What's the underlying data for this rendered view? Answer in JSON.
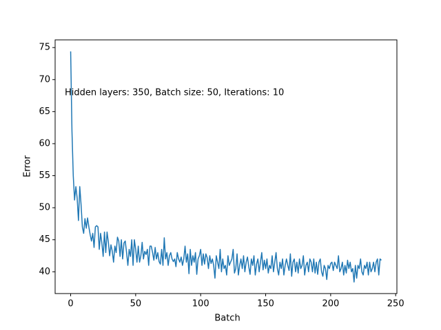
{
  "chart_data": {
    "type": "line",
    "x_label": "Batch",
    "y_label": "Error",
    "annotation": "Hidden layers: 350, Batch size: 50, Iterations: 10",
    "xlim": [
      -11.95,
      250.95
    ],
    "xticks": [
      0,
      50,
      100,
      150,
      200,
      250
    ],
    "ylim": [
      36.6,
      76.2
    ],
    "yticks": [
      40,
      45,
      50,
      55,
      60,
      65,
      70,
      75
    ],
    "series": [
      {
        "color": "#1f77b4",
        "x": [
          0,
          1,
          2,
          3,
          4,
          5,
          6,
          7,
          8,
          9,
          10,
          11,
          12,
          13,
          14,
          15,
          16,
          17,
          18,
          19,
          20,
          21,
          22,
          23,
          24,
          25,
          26,
          27,
          28,
          29,
          30,
          31,
          32,
          33,
          34,
          35,
          36,
          37,
          38,
          39,
          40,
          41,
          42,
          43,
          44,
          45,
          46,
          47,
          48,
          49,
          50,
          51,
          52,
          53,
          54,
          55,
          56,
          57,
          58,
          59,
          60,
          61,
          62,
          63,
          64,
          65,
          66,
          67,
          68,
          69,
          70,
          71,
          72,
          73,
          74,
          75,
          76,
          77,
          78,
          79,
          80,
          81,
          82,
          83,
          84,
          85,
          86,
          87,
          88,
          89,
          90,
          91,
          92,
          93,
          94,
          95,
          96,
          97,
          98,
          99,
          100,
          101,
          102,
          103,
          104,
          105,
          106,
          107,
          108,
          109,
          110,
          111,
          112,
          113,
          114,
          115,
          116,
          117,
          118,
          119,
          120,
          121,
          122,
          123,
          124,
          125,
          126,
          127,
          128,
          129,
          130,
          131,
          132,
          133,
          134,
          135,
          136,
          137,
          138,
          139,
          140,
          141,
          142,
          143,
          144,
          145,
          146,
          147,
          148,
          149,
          150,
          151,
          152,
          153,
          154,
          155,
          156,
          157,
          158,
          159,
          160,
          161,
          162,
          163,
          164,
          165,
          166,
          167,
          168,
          169,
          170,
          171,
          172,
          173,
          174,
          175,
          176,
          177,
          178,
          179,
          180,
          181,
          182,
          183,
          184,
          185,
          186,
          187,
          188,
          189,
          190,
          191,
          192,
          193,
          194,
          195,
          196,
          197,
          198,
          199,
          200,
          201,
          202,
          203,
          204,
          205,
          206,
          207,
          208,
          209,
          210,
          211,
          212,
          213,
          214,
          215,
          216,
          217,
          218,
          219,
          220,
          221,
          222,
          223,
          224,
          225,
          226,
          227,
          228,
          229,
          230,
          231,
          232,
          233,
          234,
          235,
          236,
          237,
          238,
          239
        ],
        "values": [
          74.4,
          62,
          55,
          51.2,
          53.3,
          51.5,
          48,
          53.3,
          50.5,
          47,
          46,
          48.3,
          46.8,
          48.4,
          47,
          45.8,
          44.8,
          46,
          43.8,
          47,
          47.2,
          47,
          43.5,
          46,
          44.5,
          42.4,
          46.2,
          43,
          46.2,
          44.6,
          42.5,
          44.2,
          43.2,
          41.5,
          44,
          43,
          45.4,
          44.8,
          42.4,
          45,
          42,
          44.5,
          44.8,
          43,
          41,
          43.5,
          42.4,
          45,
          41,
          45,
          43.5,
          41.5,
          44,
          41.5,
          42.5,
          44.6,
          42,
          43.2,
          42.7,
          43.5,
          41,
          44,
          44,
          43,
          41.8,
          43.8,
          42,
          43,
          41.6,
          41.2,
          43.5,
          41,
          45.3,
          42,
          43,
          41,
          42.5,
          43,
          42,
          41.6,
          42,
          40.8,
          43,
          42,
          41.5,
          42.3,
          41,
          42,
          44,
          41.5,
          42.8,
          39.7,
          43.5,
          41,
          42.5,
          41.5,
          43,
          39.6,
          42,
          42.5,
          43.5,
          41,
          42.8,
          41.2,
          42.8,
          42.2,
          40.5,
          42.5,
          41.3,
          42,
          41,
          39,
          42.5,
          41.5,
          40.5,
          43.5,
          40,
          42,
          40.5,
          41,
          39.5,
          42.5,
          41,
          41.5,
          42,
          43.5,
          39.8,
          40.5,
          42.8,
          39.5,
          41,
          42,
          40.5,
          42.5,
          40,
          41.5,
          42.3,
          40.8,
          39.6,
          42,
          41,
          42.5,
          39.5,
          41.2,
          42,
          40,
          41.5,
          43,
          40.3,
          41.8,
          40.5,
          42,
          39.8,
          41,
          40.5,
          42.5,
          40,
          41.5,
          43,
          40.5,
          39.5,
          41.5,
          40.5,
          42,
          39.5,
          41,
          42,
          41,
          40.2,
          42.8,
          39.3,
          41.5,
          42,
          40,
          41.5,
          39.8,
          42,
          40.5,
          41,
          42.5,
          39.5,
          41,
          41.5,
          40,
          42,
          41.5,
          40,
          42,
          39.8,
          41.5,
          39.6,
          41.5,
          42,
          40,
          39.3,
          41,
          40.5,
          38.8,
          41,
          40.5,
          41.3,
          41.5,
          40.2,
          41.5,
          41,
          40.5,
          42.5,
          40,
          40.5,
          41.5,
          39.5,
          41,
          39.8,
          41.8,
          40.5,
          41.5,
          40,
          40.5,
          38.4,
          41,
          39,
          41,
          40.5,
          42,
          40,
          39.5,
          41,
          40.5,
          41.5,
          39.5,
          41.5,
          40,
          40.5,
          41.5,
          40,
          41.5,
          42,
          39.5,
          42,
          41.8
        ]
      }
    ]
  }
}
